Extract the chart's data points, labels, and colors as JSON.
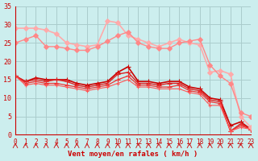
{
  "background_color": "#cceeee",
  "grid_color": "#aacccc",
  "xlabel": "Vent moyen/en rafales ( km/h )",
  "xlim": [
    0,
    23
  ],
  "ylim": [
    0,
    35
  ],
  "yticks": [
    0,
    5,
    10,
    15,
    20,
    25,
    30,
    35
  ],
  "xticks": [
    0,
    1,
    2,
    3,
    4,
    5,
    6,
    7,
    8,
    9,
    10,
    11,
    12,
    13,
    14,
    15,
    16,
    17,
    18,
    19,
    20,
    21,
    22,
    23
  ],
  "lines": [
    {
      "x": [
        0,
        1,
        2,
        3,
        4,
        5,
        6,
        7,
        8,
        9,
        10,
        11,
        12,
        13,
        14,
        15,
        16,
        17,
        18,
        19,
        20,
        21,
        22,
        23
      ],
      "y": [
        16,
        14.5,
        15.5,
        15,
        15,
        15,
        14,
        13.5,
        14,
        14.5,
        17,
        18.5,
        14.5,
        14.5,
        14,
        14.5,
        14.5,
        13,
        12.5,
        10,
        9.5,
        2.5,
        3.5,
        1.5
      ],
      "color": "#cc0000",
      "marker": "+",
      "markersize": 4,
      "linewidth": 1.2
    },
    {
      "x": [
        0,
        1,
        2,
        3,
        4,
        5,
        6,
        7,
        8,
        9,
        10,
        11,
        12,
        13,
        14,
        15,
        16,
        17,
        18,
        19,
        20,
        21,
        22,
        23
      ],
      "y": [
        16,
        14.5,
        15,
        14.5,
        15,
        14.5,
        13.5,
        13,
        13.5,
        14,
        16.5,
        17,
        14,
        14,
        13.5,
        14,
        14,
        12.5,
        12,
        9.5,
        9,
        1,
        3,
        1.5
      ],
      "color": "#dd2222",
      "marker": "+",
      "markersize": 4,
      "linewidth": 1.0
    },
    {
      "x": [
        0,
        1,
        2,
        3,
        4,
        5,
        6,
        7,
        8,
        9,
        10,
        11,
        12,
        13,
        14,
        15,
        16,
        17,
        18,
        19,
        20,
        21,
        22,
        23
      ],
      "y": [
        16,
        14,
        14.5,
        14,
        14,
        13.5,
        13,
        12.5,
        13,
        13.5,
        15,
        16,
        13.5,
        13.5,
        13,
        13,
        13.5,
        12,
        11.5,
        9,
        8.5,
        1,
        2.5,
        1.5
      ],
      "color": "#ee3333",
      "marker": "+",
      "markersize": 4,
      "linewidth": 0.9
    },
    {
      "x": [
        0,
        1,
        2,
        3,
        4,
        5,
        6,
        7,
        8,
        9,
        10,
        11,
        12,
        13,
        14,
        15,
        16,
        17,
        18,
        19,
        20,
        21,
        22,
        23
      ],
      "y": [
        16,
        13.5,
        14,
        13.5,
        13.5,
        13,
        12.5,
        12,
        12.5,
        13,
        14,
        15,
        13,
        13,
        12.5,
        12.5,
        12.5,
        11.5,
        11,
        8,
        8,
        1,
        2,
        1.5
      ],
      "color": "#ff5555",
      "marker": "+",
      "markersize": 3,
      "linewidth": 0.8
    },
    {
      "x": [
        0,
        1,
        2,
        3,
        4,
        5,
        6,
        7,
        8,
        9,
        10,
        11,
        12,
        13,
        14,
        15,
        16,
        17,
        18,
        19,
        20,
        21,
        22,
        23
      ],
      "y": [
        29,
        29,
        29,
        28.5,
        27.5,
        25,
        24.5,
        24,
        24.5,
        31,
        30.5,
        27,
        26,
        25,
        24,
        25,
        26,
        25,
        24.5,
        17,
        17.5,
        16.5,
        5,
        2
      ],
      "color": "#ffaaaa",
      "marker": "D",
      "markersize": 3,
      "linewidth": 1.2
    },
    {
      "x": [
        0,
        1,
        2,
        3,
        4,
        5,
        6,
        7,
        8,
        9,
        10,
        11,
        12,
        13,
        14,
        15,
        16,
        17,
        18,
        19,
        20,
        21,
        22,
        23
      ],
      "y": [
        25,
        26,
        27,
        24,
        24,
        23.5,
        23,
        23,
        24,
        25.5,
        27,
        28,
        25,
        24,
        23.5,
        23.5,
        25,
        25.5,
        26,
        19,
        16,
        14,
        6,
        5
      ],
      "color": "#ff8888",
      "marker": "D",
      "markersize": 3,
      "linewidth": 1.0
    }
  ],
  "arrow_color": "#cc2222"
}
